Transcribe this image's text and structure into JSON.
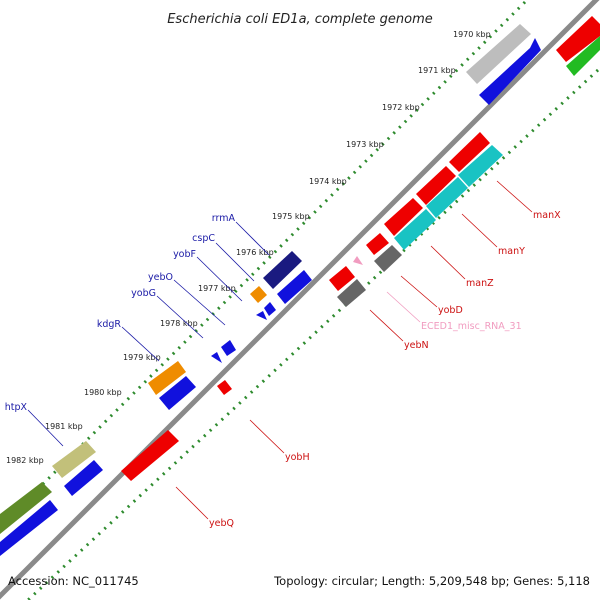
{
  "title": "Escherichia coli ED1a, complete genome",
  "footer": {
    "accession": "Accession: NC_011745",
    "summary": "Topology: circular; Length: 5,209,548 bp; Genes: 5,118"
  },
  "colors": {
    "backbone": "#8a8a8a",
    "tick": "#2e8b2e",
    "forward_label": "#1a1aa6",
    "reverse_label": "#cc1111",
    "misc_rna_label": "#f19cc0"
  },
  "kbp_ticks": [
    "1970 kbp",
    "1971 kbp",
    "1972 kbp",
    "1973 kbp",
    "1974 kbp",
    "1975 kbp",
    "1976 kbp",
    "1977 kbp",
    "1978 kbp",
    "1979 kbp",
    "1980 kbp",
    "1981 kbp",
    "1982 kbp"
  ],
  "gene_labels": {
    "forward": [
      "rrmA",
      "cspC",
      "yobF",
      "yebO",
      "yobG",
      "kdgR",
      "htpX"
    ],
    "reverse": [
      "manX",
      "manY",
      "manZ",
      "yobD",
      "ECED1_misc_RNA_31",
      "yebN",
      "yobH",
      "yebQ"
    ]
  }
}
